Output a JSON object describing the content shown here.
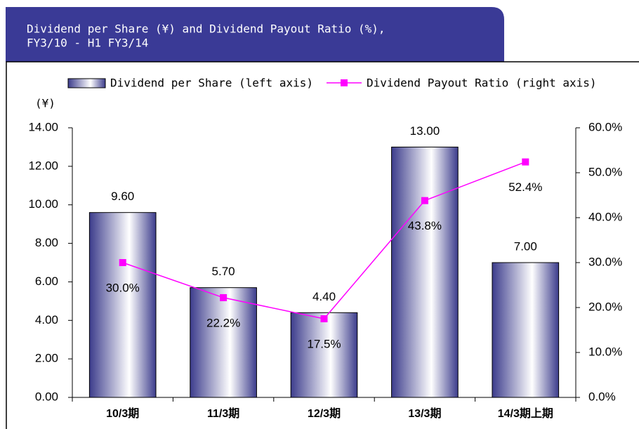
{
  "chart_data": {
    "type": "bar-line",
    "title": [
      "Dividend per Share (¥) and Dividend Payout Ratio (%),",
      "FY3/10 - H1 FY3/14"
    ],
    "y_label": "(¥)",
    "categories": [
      "10/3期",
      "11/3期",
      "12/3期",
      "13/3期",
      "14/3期上期"
    ],
    "series": [
      {
        "name": "Dividend per Share (left axis)",
        "type": "bar",
        "color": "#3c3c8c",
        "values": [
          9.6,
          5.7,
          4.4,
          13.0,
          7.0
        ],
        "value_labels": [
          "9.60",
          "5.70",
          "4.40",
          "13.00",
          "7.00"
        ]
      },
      {
        "name": "Dividend Payout Ratio (right axis)",
        "type": "line",
        "axis": "y2",
        "color": "#ff00ff",
        "values": [
          30.0,
          22.2,
          17.5,
          43.8,
          52.4
        ],
        "value_labels": [
          "30.0%",
          "22.2%",
          "17.5%",
          "43.8%",
          "52.4%"
        ]
      }
    ],
    "ylim": [
      0,
      14
    ],
    "yticks": [
      {
        "value": 0,
        "label": "0.00"
      },
      {
        "value": 2,
        "label": "2.00"
      },
      {
        "value": 4,
        "label": "4.00"
      },
      {
        "value": 6,
        "label": "6.00"
      },
      {
        "value": 8,
        "label": "8.00"
      },
      {
        "value": 10,
        "label": "10.00"
      },
      {
        "value": 12,
        "label": "12.00"
      },
      {
        "value": 14,
        "label": "14.00"
      }
    ],
    "y2lim": [
      0,
      60
    ],
    "y2ticks": [
      {
        "value": 0,
        "label": "0.0%"
      },
      {
        "value": 10,
        "label": "10.0%"
      },
      {
        "value": 20,
        "label": "20.0%"
      },
      {
        "value": 30,
        "label": "30.0%"
      },
      {
        "value": 40,
        "label": "40.0%"
      },
      {
        "value": 50,
        "label": "50.0%"
      },
      {
        "value": 60,
        "label": "60.0%"
      }
    ],
    "legend": "top"
  }
}
